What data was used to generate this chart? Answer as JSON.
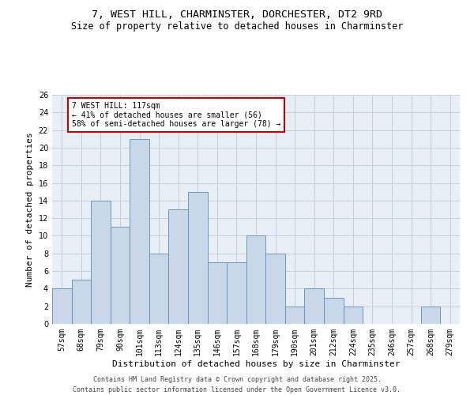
{
  "title_line1": "7, WEST HILL, CHARMINSTER, DORCHESTER, DT2 9RD",
  "title_line2": "Size of property relative to detached houses in Charminster",
  "xlabel": "Distribution of detached houses by size in Charminster",
  "ylabel": "Number of detached properties",
  "categories": [
    "57sqm",
    "68sqm",
    "79sqm",
    "90sqm",
    "101sqm",
    "113sqm",
    "124sqm",
    "135sqm",
    "146sqm",
    "157sqm",
    "168sqm",
    "179sqm",
    "190sqm",
    "201sqm",
    "212sqm",
    "224sqm",
    "235sqm",
    "246sqm",
    "257sqm",
    "268sqm",
    "279sqm"
  ],
  "values": [
    4,
    5,
    14,
    11,
    21,
    8,
    13,
    15,
    7,
    7,
    10,
    8,
    2,
    4,
    3,
    2,
    0,
    0,
    0,
    2,
    0
  ],
  "bar_color": "#c8d8e8",
  "bar_edge_color": "#5b8db8",
  "annotation_text": "7 WEST HILL: 117sqm\n← 41% of detached houses are smaller (56)\n58% of semi-detached houses are larger (78) →",
  "annotation_box_color": "white",
  "annotation_box_edge_color": "#cc0000",
  "ylim": [
    0,
    26
  ],
  "yticks": [
    0,
    2,
    4,
    6,
    8,
    10,
    12,
    14,
    16,
    18,
    20,
    22,
    24,
    26
  ],
  "grid_color": "#c0c8d8",
  "background_color": "#e8eef5",
  "footer_text": "Contains HM Land Registry data © Crown copyright and database right 2025.\nContains public sector information licensed under the Open Government Licence v3.0.",
  "title_fontsize": 9.5,
  "subtitle_fontsize": 8.5,
  "axis_label_fontsize": 8,
  "tick_fontsize": 7,
  "annotation_fontsize": 7,
  "footer_fontsize": 6
}
